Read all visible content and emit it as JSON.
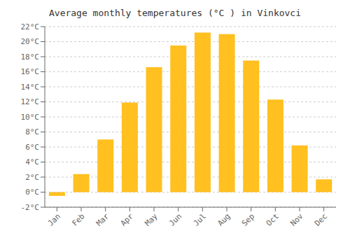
{
  "chart_data": {
    "type": "bar",
    "title": "Average monthly temperatures (°C ) in Vinkovci",
    "categories": [
      "Jan",
      "Feb",
      "Mar",
      "Apr",
      "May",
      "Jun",
      "Jul",
      "Aug",
      "Sep",
      "Oct",
      "Nov",
      "Dec"
    ],
    "values": [
      -0.5,
      2.4,
      7.0,
      11.9,
      16.6,
      19.5,
      21.2,
      21.0,
      17.5,
      12.3,
      6.2,
      1.7
    ],
    "color": "#FFC020",
    "ylim": [
      -2,
      22
    ],
    "yticks": [
      {
        "value": -2,
        "label": "-2°C"
      },
      {
        "value": 0,
        "label": "0°C"
      },
      {
        "value": 2,
        "label": "2°C"
      },
      {
        "value": 4,
        "label": "4°C"
      },
      {
        "value": 6,
        "label": "6°C"
      },
      {
        "value": 8,
        "label": "8°C"
      },
      {
        "value": 10,
        "label": "10°C"
      },
      {
        "value": 12,
        "label": "12°C"
      },
      {
        "value": 14,
        "label": "14°C"
      },
      {
        "value": 16,
        "label": "16°C"
      },
      {
        "value": 18,
        "label": "18°C"
      },
      {
        "value": 20,
        "label": "20°C"
      },
      {
        "value": 22,
        "label": "22°C"
      }
    ],
    "grid": true
  }
}
